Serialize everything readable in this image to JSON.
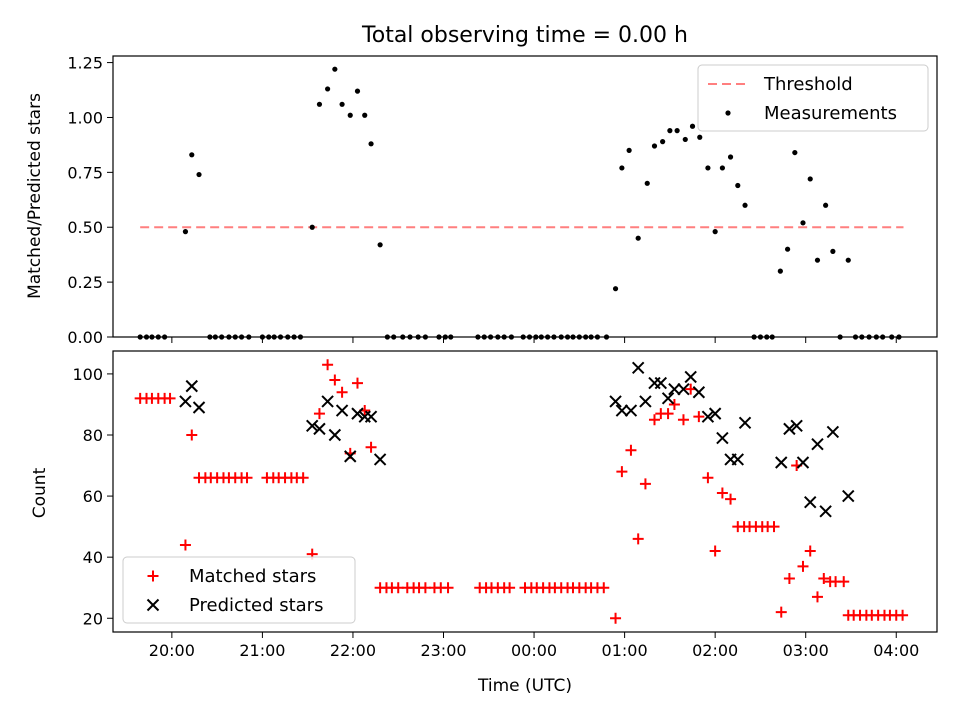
{
  "chart_data": [
    {
      "type": "scatter",
      "title": "Total observing time = 0.00 h",
      "ylabel": "Matched/Predicted stars",
      "xlabel": "",
      "x_ticks": [
        "20:00",
        "21:00",
        "22:00",
        "23:00",
        "00:00",
        "01:00",
        "02:00",
        "03:00",
        "04:00"
      ],
      "xlim": [
        -0.65,
        8.45
      ],
      "ylim": [
        0,
        1.28
      ],
      "y_ticks": [
        "0.00",
        "0.25",
        "0.50",
        "0.75",
        "1.00",
        "1.25"
      ],
      "y_tick_values": [
        0,
        0.25,
        0.5,
        0.75,
        1.0,
        1.25
      ],
      "legend_position": "upper right",
      "series": [
        {
          "name": "Threshold",
          "style": "dashed-line",
          "color": "#ff7f7f",
          "x": [
            -0.35,
            8.08
          ],
          "y": [
            0.5,
            0.5
          ]
        },
        {
          "name": "Measurements",
          "style": "point",
          "color": "#000000",
          "points": [
            [
              -0.35,
              0
            ],
            [
              -0.28,
              0
            ],
            [
              -0.22,
              0
            ],
            [
              -0.15,
              0
            ],
            [
              -0.08,
              0
            ],
            [
              0.15,
              0.48
            ],
            [
              0.22,
              0.83
            ],
            [
              0.3,
              0.74
            ],
            [
              0.42,
              0
            ],
            [
              0.48,
              0
            ],
            [
              0.55,
              0
            ],
            [
              0.63,
              0
            ],
            [
              0.7,
              0
            ],
            [
              0.77,
              0
            ],
            [
              0.85,
              0
            ],
            [
              1.0,
              0
            ],
            [
              1.07,
              0
            ],
            [
              1.13,
              0
            ],
            [
              1.2,
              0
            ],
            [
              1.28,
              0
            ],
            [
              1.35,
              0
            ],
            [
              1.42,
              0
            ],
            [
              1.55,
              0.5
            ],
            [
              1.63,
              1.06
            ],
            [
              1.72,
              1.13
            ],
            [
              1.8,
              1.22
            ],
            [
              1.88,
              1.06
            ],
            [
              1.97,
              1.01
            ],
            [
              2.05,
              1.12
            ],
            [
              2.13,
              1.01
            ],
            [
              2.2,
              0.88
            ],
            [
              2.3,
              0.42
            ],
            [
              2.38,
              0
            ],
            [
              2.45,
              0
            ],
            [
              2.55,
              0
            ],
            [
              2.63,
              0
            ],
            [
              2.72,
              0
            ],
            [
              2.8,
              0
            ],
            [
              2.95,
              0
            ],
            [
              3.02,
              0
            ],
            [
              3.08,
              0
            ],
            [
              3.38,
              0
            ],
            [
              3.45,
              0
            ],
            [
              3.52,
              0
            ],
            [
              3.6,
              0
            ],
            [
              3.67,
              0
            ],
            [
              3.75,
              0
            ],
            [
              3.88,
              0
            ],
            [
              3.95,
              0
            ],
            [
              4.02,
              0
            ],
            [
              4.08,
              0
            ],
            [
              4.15,
              0
            ],
            [
              4.22,
              0
            ],
            [
              4.3,
              0
            ],
            [
              4.37,
              0
            ],
            [
              4.43,
              0
            ],
            [
              4.5,
              0
            ],
            [
              4.57,
              0
            ],
            [
              4.63,
              0
            ],
            [
              4.7,
              0
            ],
            [
              4.8,
              0
            ],
            [
              4.9,
              0.22
            ],
            [
              4.97,
              0.77
            ],
            [
              5.05,
              0.85
            ],
            [
              5.15,
              0.45
            ],
            [
              5.25,
              0.7
            ],
            [
              5.33,
              0.87
            ],
            [
              5.42,
              0.89
            ],
            [
              5.5,
              0.94
            ],
            [
              5.58,
              0.94
            ],
            [
              5.67,
              0.9
            ],
            [
              5.75,
              0.96
            ],
            [
              5.83,
              0.91
            ],
            [
              5.92,
              0.77
            ],
            [
              6.0,
              0.48
            ],
            [
              6.08,
              0.77
            ],
            [
              6.17,
              0.82
            ],
            [
              6.25,
              0.69
            ],
            [
              6.33,
              0.6
            ],
            [
              6.43,
              0
            ],
            [
              6.5,
              0
            ],
            [
              6.57,
              0
            ],
            [
              6.63,
              0
            ],
            [
              6.72,
              0.3
            ],
            [
              6.8,
              0.4
            ],
            [
              6.88,
              0.84
            ],
            [
              6.97,
              0.52
            ],
            [
              7.05,
              0.72
            ],
            [
              7.13,
              0.35
            ],
            [
              7.22,
              0.6
            ],
            [
              7.3,
              0.39
            ],
            [
              7.38,
              0
            ],
            [
              7.47,
              0.35
            ],
            [
              7.55,
              0
            ],
            [
              7.62,
              0
            ],
            [
              7.7,
              0
            ],
            [
              7.78,
              0
            ],
            [
              7.85,
              0
            ],
            [
              7.95,
              0
            ],
            [
              8.03,
              0
            ]
          ]
        }
      ]
    },
    {
      "type": "scatter",
      "title": "",
      "xlabel": "Time (UTC)",
      "ylabel": "Count",
      "x_ticks": [
        "20:00",
        "21:00",
        "22:00",
        "23:00",
        "00:00",
        "01:00",
        "02:00",
        "03:00",
        "04:00"
      ],
      "xlim": [
        -0.65,
        8.45
      ],
      "ylim": [
        15.5,
        107.5
      ],
      "y_ticks": [
        "20",
        "40",
        "60",
        "80",
        "100"
      ],
      "y_tick_values": [
        20,
        40,
        60,
        80,
        100
      ],
      "legend_position": "lower left",
      "series": [
        {
          "name": "Matched stars",
          "style": "plus",
          "color": "#ff0000",
          "points": [
            [
              -0.35,
              92
            ],
            [
              -0.28,
              92
            ],
            [
              -0.22,
              92
            ],
            [
              -0.15,
              92
            ],
            [
              -0.08,
              92
            ],
            [
              -0.02,
              92
            ],
            [
              0.15,
              44
            ],
            [
              0.22,
              80
            ],
            [
              0.3,
              66
            ],
            [
              0.37,
              66
            ],
            [
              0.43,
              66
            ],
            [
              0.5,
              66
            ],
            [
              0.57,
              66
            ],
            [
              0.63,
              66
            ],
            [
              0.7,
              66
            ],
            [
              0.77,
              66
            ],
            [
              0.83,
              66
            ],
            [
              1.05,
              66
            ],
            [
              1.12,
              66
            ],
            [
              1.18,
              66
            ],
            [
              1.25,
              66
            ],
            [
              1.32,
              66
            ],
            [
              1.38,
              66
            ],
            [
              1.45,
              66
            ],
            [
              1.55,
              41
            ],
            [
              1.63,
              87
            ],
            [
              1.72,
              103
            ],
            [
              1.8,
              98
            ],
            [
              1.88,
              94
            ],
            [
              1.97,
              74
            ],
            [
              2.05,
              97
            ],
            [
              2.13,
              88
            ],
            [
              2.2,
              76
            ],
            [
              2.3,
              30
            ],
            [
              2.37,
              30
            ],
            [
              2.43,
              30
            ],
            [
              2.5,
              30
            ],
            [
              2.6,
              30
            ],
            [
              2.67,
              30
            ],
            [
              2.73,
              30
            ],
            [
              2.8,
              30
            ],
            [
              2.9,
              30
            ],
            [
              2.97,
              30
            ],
            [
              3.05,
              30
            ],
            [
              3.4,
              30
            ],
            [
              3.47,
              30
            ],
            [
              3.53,
              30
            ],
            [
              3.6,
              30
            ],
            [
              3.67,
              30
            ],
            [
              3.73,
              30
            ],
            [
              3.9,
              30
            ],
            [
              3.97,
              30
            ],
            [
              4.03,
              30
            ],
            [
              4.1,
              30
            ],
            [
              4.17,
              30
            ],
            [
              4.23,
              30
            ],
            [
              4.3,
              30
            ],
            [
              4.37,
              30
            ],
            [
              4.43,
              30
            ],
            [
              4.5,
              30
            ],
            [
              4.57,
              30
            ],
            [
              4.63,
              30
            ],
            [
              4.7,
              30
            ],
            [
              4.77,
              30
            ],
            [
              4.9,
              20
            ],
            [
              4.97,
              68
            ],
            [
              5.07,
              75
            ],
            [
              5.15,
              46
            ],
            [
              5.23,
              64
            ],
            [
              5.33,
              85
            ],
            [
              5.4,
              87
            ],
            [
              5.48,
              87
            ],
            [
              5.55,
              90
            ],
            [
              5.65,
              85
            ],
            [
              5.73,
              95
            ],
            [
              5.82,
              86
            ],
            [
              5.92,
              66
            ],
            [
              6.0,
              42
            ],
            [
              6.08,
              61
            ],
            [
              6.17,
              59
            ],
            [
              6.25,
              50
            ],
            [
              6.32,
              50
            ],
            [
              6.38,
              50
            ],
            [
              6.45,
              50
            ],
            [
              6.52,
              50
            ],
            [
              6.58,
              50
            ],
            [
              6.65,
              50
            ],
            [
              6.73,
              22
            ],
            [
              6.82,
              33
            ],
            [
              6.9,
              70
            ],
            [
              6.97,
              37
            ],
            [
              7.05,
              42
            ],
            [
              7.13,
              27
            ],
            [
              7.2,
              33
            ],
            [
              7.27,
              32
            ],
            [
              7.33,
              32
            ],
            [
              7.42,
              32
            ],
            [
              7.47,
              21
            ],
            [
              7.53,
              21
            ],
            [
              7.6,
              21
            ],
            [
              7.67,
              21
            ],
            [
              7.73,
              21
            ],
            [
              7.8,
              21
            ],
            [
              7.87,
              21
            ],
            [
              7.93,
              21
            ],
            [
              8.0,
              21
            ],
            [
              8.07,
              21
            ]
          ]
        },
        {
          "name": "Predicted stars",
          "style": "x",
          "color": "#000000",
          "points": [
            [
              0.15,
              91
            ],
            [
              0.22,
              96
            ],
            [
              0.3,
              89
            ],
            [
              1.55,
              83
            ],
            [
              1.63,
              82
            ],
            [
              1.72,
              91
            ],
            [
              1.8,
              80
            ],
            [
              1.88,
              88
            ],
            [
              1.97,
              73
            ],
            [
              2.05,
              87
            ],
            [
              2.13,
              86
            ],
            [
              2.2,
              86
            ],
            [
              2.3,
              72
            ],
            [
              4.9,
              91
            ],
            [
              4.97,
              88
            ],
            [
              5.07,
              88
            ],
            [
              5.15,
              102
            ],
            [
              5.23,
              91
            ],
            [
              5.33,
              97
            ],
            [
              5.4,
              97
            ],
            [
              5.48,
              92
            ],
            [
              5.55,
              95
            ],
            [
              5.65,
              95
            ],
            [
              5.73,
              99
            ],
            [
              5.82,
              94
            ],
            [
              5.92,
              86
            ],
            [
              6.0,
              87
            ],
            [
              6.08,
              79
            ],
            [
              6.17,
              72
            ],
            [
              6.25,
              72
            ],
            [
              6.33,
              84
            ],
            [
              6.73,
              71
            ],
            [
              6.82,
              82
            ],
            [
              6.9,
              83
            ],
            [
              6.97,
              71
            ],
            [
              7.05,
              58
            ],
            [
              7.13,
              77
            ],
            [
              7.22,
              55
            ],
            [
              7.3,
              81
            ],
            [
              7.47,
              60
            ]
          ]
        }
      ]
    }
  ]
}
